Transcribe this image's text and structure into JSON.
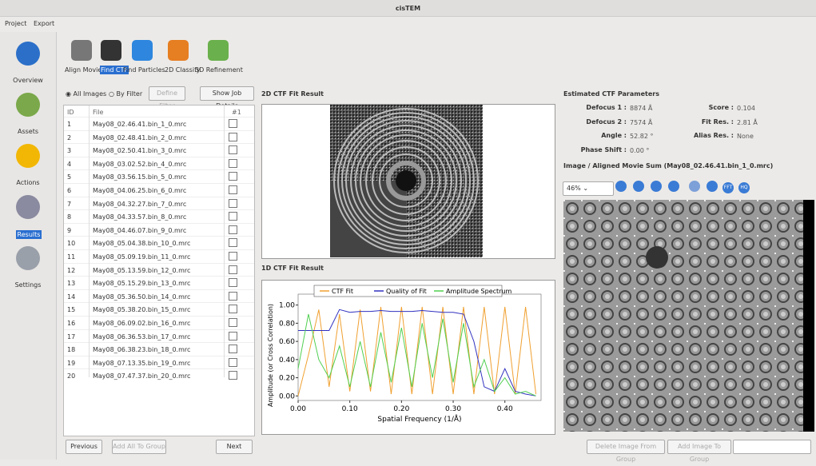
{
  "window_title": "cisTEM",
  "menu": [
    "Project",
    "Export"
  ],
  "sidebar": [
    "Overview",
    "Assets",
    "Actions",
    "Results",
    "Settings"
  ],
  "tabs": [
    "Align Movies",
    "Find CTF",
    "Find Particles",
    "2D Classify",
    "3D Refinement"
  ],
  "filter": {
    "all_images": "All Images",
    "by_filter": "By Filter",
    "define_filter": "Define Filter",
    "show_job_details": "Show Job Details"
  },
  "table": {
    "headers": [
      "ID",
      "File",
      "#1"
    ],
    "rows": [
      [
        1,
        "May08_02.46.41.bin_1_0.mrc"
      ],
      [
        2,
        "May08_02.48.41.bin_2_0.mrc"
      ],
      [
        3,
        "May08_02.50.41.bin_3_0.mrc"
      ],
      [
        4,
        "May08_03.02.52.bin_4_0.mrc"
      ],
      [
        5,
        "May08_03.56.15.bin_5_0.mrc"
      ],
      [
        6,
        "May08_04.06.25.bin_6_0.mrc"
      ],
      [
        7,
        "May08_04.32.27.bin_7_0.mrc"
      ],
      [
        8,
        "May08_04.33.57.bin_8_0.mrc"
      ],
      [
        9,
        "May08_04.46.07.bin_9_0.mrc"
      ],
      [
        10,
        "May08_05.04.38.bin_10_0.mrc"
      ],
      [
        11,
        "May08_05.09.19.bin_11_0.mrc"
      ],
      [
        12,
        "May08_05.13.59.bin_12_0.mrc"
      ],
      [
        13,
        "May08_05.15.29.bin_13_0.mrc"
      ],
      [
        14,
        "May08_05.36.50.bin_14_0.mrc"
      ],
      [
        15,
        "May08_05.38.20.bin_15_0.mrc"
      ],
      [
        16,
        "May08_06.09.02.bin_16_0.mrc"
      ],
      [
        17,
        "May08_06.36.53.bin_17_0.mrc"
      ],
      [
        18,
        "May08_06.38.23.bin_18_0.mrc"
      ],
      [
        19,
        "May08_07.13.35.bin_19_0.mrc"
      ],
      [
        20,
        "May08_07.47.37.bin_20_0.mrc"
      ]
    ]
  },
  "buttons": {
    "previous": "Previous",
    "add_all": "Add All To Group",
    "next": "Next",
    "delete_image": "Delete Image From Group",
    "add_image": "Add Image To Group"
  },
  "fit_2d_title": "2D CTF Fit Result",
  "fit_1d_title": "1D CTF Fit Result",
  "ctf_params": {
    "title": "Estimated CTF Parameters",
    "items": [
      {
        "label": "Defocus 1 :",
        "value": "8874 Å"
      },
      {
        "label": "Defocus 2 :",
        "value": "7574 Å"
      },
      {
        "label": "Angle :",
        "value": "52.82 °"
      },
      {
        "label": "Phase Shift :",
        "value": "0.00 °"
      },
      {
        "label": "Score :",
        "value": "0.104"
      },
      {
        "label": "Fit Res. :",
        "value": "2.81 Å"
      },
      {
        "label": "Alias Res. :",
        "value": "None"
      }
    ]
  },
  "image_title": "Image / Aligned Movie Sum  (May08_02.46.41.bin_1_0.mrc)",
  "zoom": "46%",
  "toolbar_labels": [
    "FFT",
    "HQ"
  ],
  "chart_data": {
    "type": "line",
    "xlabel": "Spatial Frequency  (1/Å)",
    "ylabel": "Amplitude (or Cross Correlation)",
    "x": [
      0,
      0.02,
      0.04,
      0.06,
      0.08,
      0.1,
      0.12,
      0.14,
      0.16,
      0.18,
      0.2,
      0.22,
      0.24,
      0.26,
      0.28,
      0.3,
      0.32,
      0.34,
      0.36,
      0.38,
      0.4,
      0.42,
      0.44,
      0.46
    ],
    "series": [
      {
        "name": "CTF Fit",
        "color": "#f0a030",
        "values": [
          0.0,
          0.45,
          0.95,
          0.1,
          0.9,
          0.05,
          0.95,
          0.05,
          0.98,
          0.02,
          0.98,
          0.02,
          0.98,
          0.02,
          0.98,
          0.02,
          0.98,
          0.02,
          0.98,
          0.02,
          0.98,
          0.02,
          0.98,
          0.02
        ]
      },
      {
        "name": "Quality of Fit",
        "color": "#3030c0",
        "values": [
          0.72,
          0.72,
          0.72,
          0.72,
          0.95,
          0.92,
          0.93,
          0.93,
          0.94,
          0.93,
          0.93,
          0.93,
          0.94,
          0.93,
          0.92,
          0.92,
          0.9,
          0.6,
          0.1,
          0.05,
          0.3,
          0.05,
          0.02,
          0.0
        ]
      },
      {
        "name": "Amplitude Spectrum",
        "color": "#50d050",
        "values": [
          0.3,
          0.9,
          0.4,
          0.2,
          0.55,
          0.1,
          0.6,
          0.1,
          0.7,
          0.15,
          0.75,
          0.1,
          0.8,
          0.2,
          0.85,
          0.15,
          0.8,
          0.1,
          0.4,
          0.05,
          0.2,
          0.02,
          0.05,
          0.0
        ]
      }
    ],
    "xlim": [
      0,
      0.47
    ],
    "ylim": [
      -0.05,
      1.12
    ],
    "xticks": [
      {
        "value": 0,
        "label": "0.00"
      },
      {
        "value": 0.1,
        "label": "0.10"
      },
      {
        "value": 0.2,
        "label": "0.20"
      },
      {
        "value": 0.3,
        "label": "0.30"
      },
      {
        "value": 0.4,
        "label": "0.40"
      }
    ],
    "yticks": [
      {
        "value": 0,
        "label": "0.00"
      },
      {
        "value": 0.2,
        "label": "0.20"
      },
      {
        "value": 0.4,
        "label": "0.40"
      },
      {
        "value": 0.6,
        "label": "0.60"
      },
      {
        "value": 0.8,
        "label": "0.80"
      },
      {
        "value": 1,
        "label": "1.00"
      }
    ],
    "legend": "top"
  }
}
